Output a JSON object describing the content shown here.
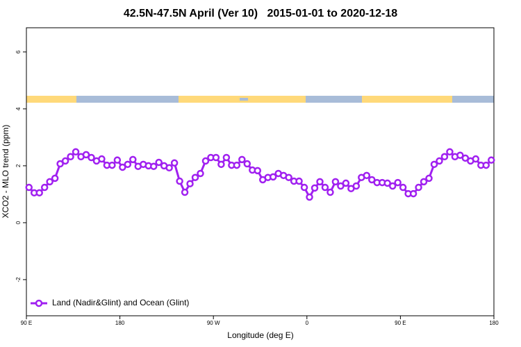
{
  "chart_data": {
    "type": "line",
    "title": "42.5N-47.5N April (Ver 10)   2015-01-01 to 2020-12-18",
    "x_label": "Longitude (deg E)",
    "y_label": "XCO2 - MLO trend (ppm)",
    "x": [
      92.5,
      97.5,
      102.5,
      107.5,
      112.5,
      117.5,
      122.5,
      127.5,
      132.5,
      137.5,
      142.5,
      147.5,
      152.5,
      157.5,
      162.5,
      167.5,
      172.5,
      177.5,
      182.5,
      187.5,
      192.5,
      197.5,
      202.5,
      207.5,
      212.5,
      217.5,
      222.5,
      227.5,
      232.5,
      237.5,
      242.5,
      247.5,
      252.5,
      257.5,
      262.5,
      267.5,
      272.5,
      277.5,
      282.5,
      287.5,
      292.5,
      297.5,
      302.5,
      307.5,
      312.5,
      317.5,
      322.5,
      327.5,
      332.5,
      337.5,
      342.5,
      347.5,
      352.5,
      357.5,
      362.5,
      367.5,
      372.5,
      377.5,
      382.5,
      387.5,
      392.5,
      397.5,
      402.5,
      407.5,
      412.5,
      417.5,
      422.5,
      427.5,
      432.5,
      437.5,
      442.5,
      447.5,
      452.5,
      457.5,
      462.5,
      467.5,
      472.5,
      477.5,
      482.5,
      487.5,
      492.5,
      497.5,
      502.5,
      507.5,
      512.5,
      517.5,
      522.5,
      527.5,
      532.5,
      537.5
    ],
    "series": [
      {
        "name": "Land (Nadir&Glint) and Ocean (Glint)",
        "color": "#a020f0",
        "values": [
          1.24,
          1.05,
          1.05,
          1.24,
          1.44,
          1.56,
          2.07,
          2.17,
          2.32,
          2.49,
          2.32,
          2.39,
          2.29,
          2.17,
          2.24,
          2.02,
          2.02,
          2.2,
          1.95,
          2.05,
          2.22,
          1.98,
          2.05,
          2.0,
          1.98,
          2.12,
          2.0,
          1.93,
          2.1,
          1.46,
          1.07,
          1.37,
          1.59,
          1.73,
          2.17,
          2.29,
          2.29,
          2.05,
          2.29,
          2.02,
          2.02,
          2.22,
          2.07,
          1.85,
          1.83,
          1.51,
          1.59,
          1.61,
          1.73,
          1.66,
          1.59,
          1.46,
          1.46,
          1.24,
          0.9,
          1.22,
          1.44,
          1.24,
          1.07,
          1.44,
          1.29,
          1.39,
          1.2,
          1.29,
          1.59,
          1.66,
          1.51,
          1.41,
          1.41,
          1.39,
          1.29,
          1.41,
          1.24,
          1.02,
          1.02,
          1.24,
          1.44,
          1.56,
          2.05,
          2.17,
          2.32,
          2.49,
          2.32,
          2.37,
          2.27,
          2.17,
          2.24,
          2.02,
          2.02,
          2.2
        ]
      }
    ],
    "xlim": [
      90,
      540
    ],
    "xticks": [
      {
        "value": 90,
        "label": "90 E"
      },
      180,
      {
        "value": 270,
        "label": "90 W"
      },
      {
        "value": 360,
        "label": "0"
      },
      {
        "value": 450,
        "label": "90 E"
      },
      {
        "value": 540,
        "label": "180"
      }
    ],
    "ylim": [
      -3.27,
      6.85
    ],
    "yticks": [
      -2,
      0,
      2,
      4,
      6
    ],
    "legend": "bottom-left"
  }
}
